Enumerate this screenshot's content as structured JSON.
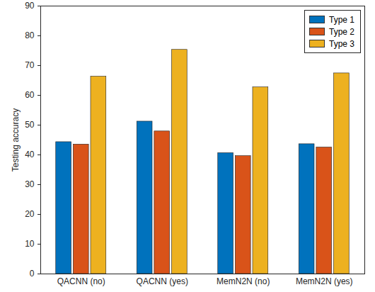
{
  "chart_data": {
    "type": "bar",
    "y_label": "Testing accuracy",
    "categories": [
      "QACNN (no)",
      "QACNN (yes)",
      "MemN2N (no)",
      "MemN2N (yes)"
    ],
    "series": [
      {
        "name": "Type 1",
        "color": "#0072BD",
        "values": [
          44.3,
          51.2,
          40.6,
          43.6
        ]
      },
      {
        "name": "Type 2",
        "color": "#D95319",
        "values": [
          43.5,
          47.9,
          39.6,
          42.5
        ]
      },
      {
        "name": "Type 3",
        "color": "#EDB120",
        "values": [
          66.3,
          75.3,
          62.7,
          67.4
        ]
      }
    ],
    "ylim": [
      0,
      90
    ],
    "yticks": [
      0,
      10,
      20,
      30,
      40,
      50,
      60,
      70,
      80,
      90
    ],
    "grid": false,
    "legend": "top-right"
  }
}
